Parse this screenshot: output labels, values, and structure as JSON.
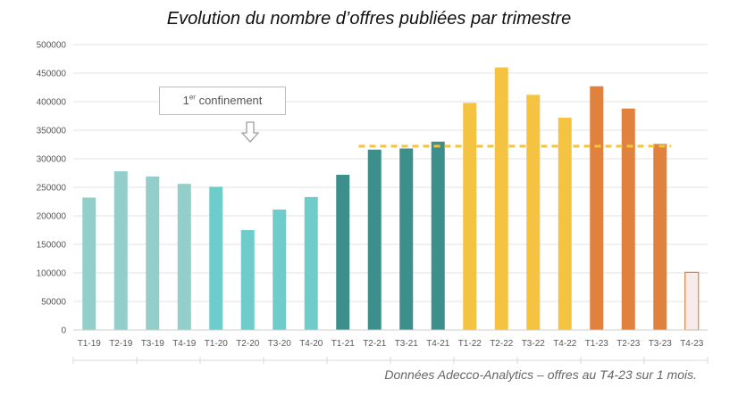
{
  "chart_data": {
    "type": "bar",
    "title": "Evolution du nombre d’offres publiées par trimestre",
    "source_note": "Données Adecco-Analytics – offres au T4-23 sur 1 mois.",
    "categories": [
      "T1-19",
      "T2-19",
      "T3-19",
      "T4-19",
      "T1-20",
      "T2-20",
      "T3-20",
      "T4-20",
      "T1-21",
      "T2-21",
      "T3-21",
      "T4-21",
      "T1-22",
      "T2-22",
      "T3-22",
      "T4-22",
      "T1-23",
      "T2-23",
      "T3-23",
      "T4-23"
    ],
    "values": [
      232000,
      278000,
      269000,
      256000,
      251000,
      175000,
      211000,
      233000,
      272000,
      316000,
      318000,
      330000,
      398000,
      460000,
      412000,
      372000,
      427000,
      388000,
      326000,
      101000
    ],
    "bar_colors": [
      "#93ceca",
      "#93ceca",
      "#93ceca",
      "#93ceca",
      "#6ecdca",
      "#6ecdca",
      "#6ecdca",
      "#6ecdca",
      "#3d8f8c",
      "#3d8f8c",
      "#3d8f8c",
      "#3d8f8c",
      "#f5c342",
      "#f5c342",
      "#f5c342",
      "#f5c342",
      "#e0823e",
      "#e0823e",
      "#e0823e",
      "#f7ece9"
    ],
    "bar_outline": {
      "T4-23": "#e0823e"
    },
    "ylim": [
      0,
      500000
    ],
    "yticks": [
      0,
      50000,
      100000,
      150000,
      200000,
      250000,
      300000,
      350000,
      400000,
      450000,
      500000
    ],
    "ytick_labels": [
      "0",
      "50000",
      "100000",
      "150000",
      "200000",
      "250000",
      "300000",
      "350000",
      "400000",
      "450000",
      "500000"
    ],
    "grid": true,
    "reference_line": {
      "value": 322000,
      "from": "T2-21",
      "to": "T3-23",
      "color": "#f5c342",
      "style": "dashed"
    },
    "annotation": {
      "text_sup": "er",
      "text_lead": "1",
      "text_rest": " confinement",
      "points_to": "T2-20"
    }
  }
}
